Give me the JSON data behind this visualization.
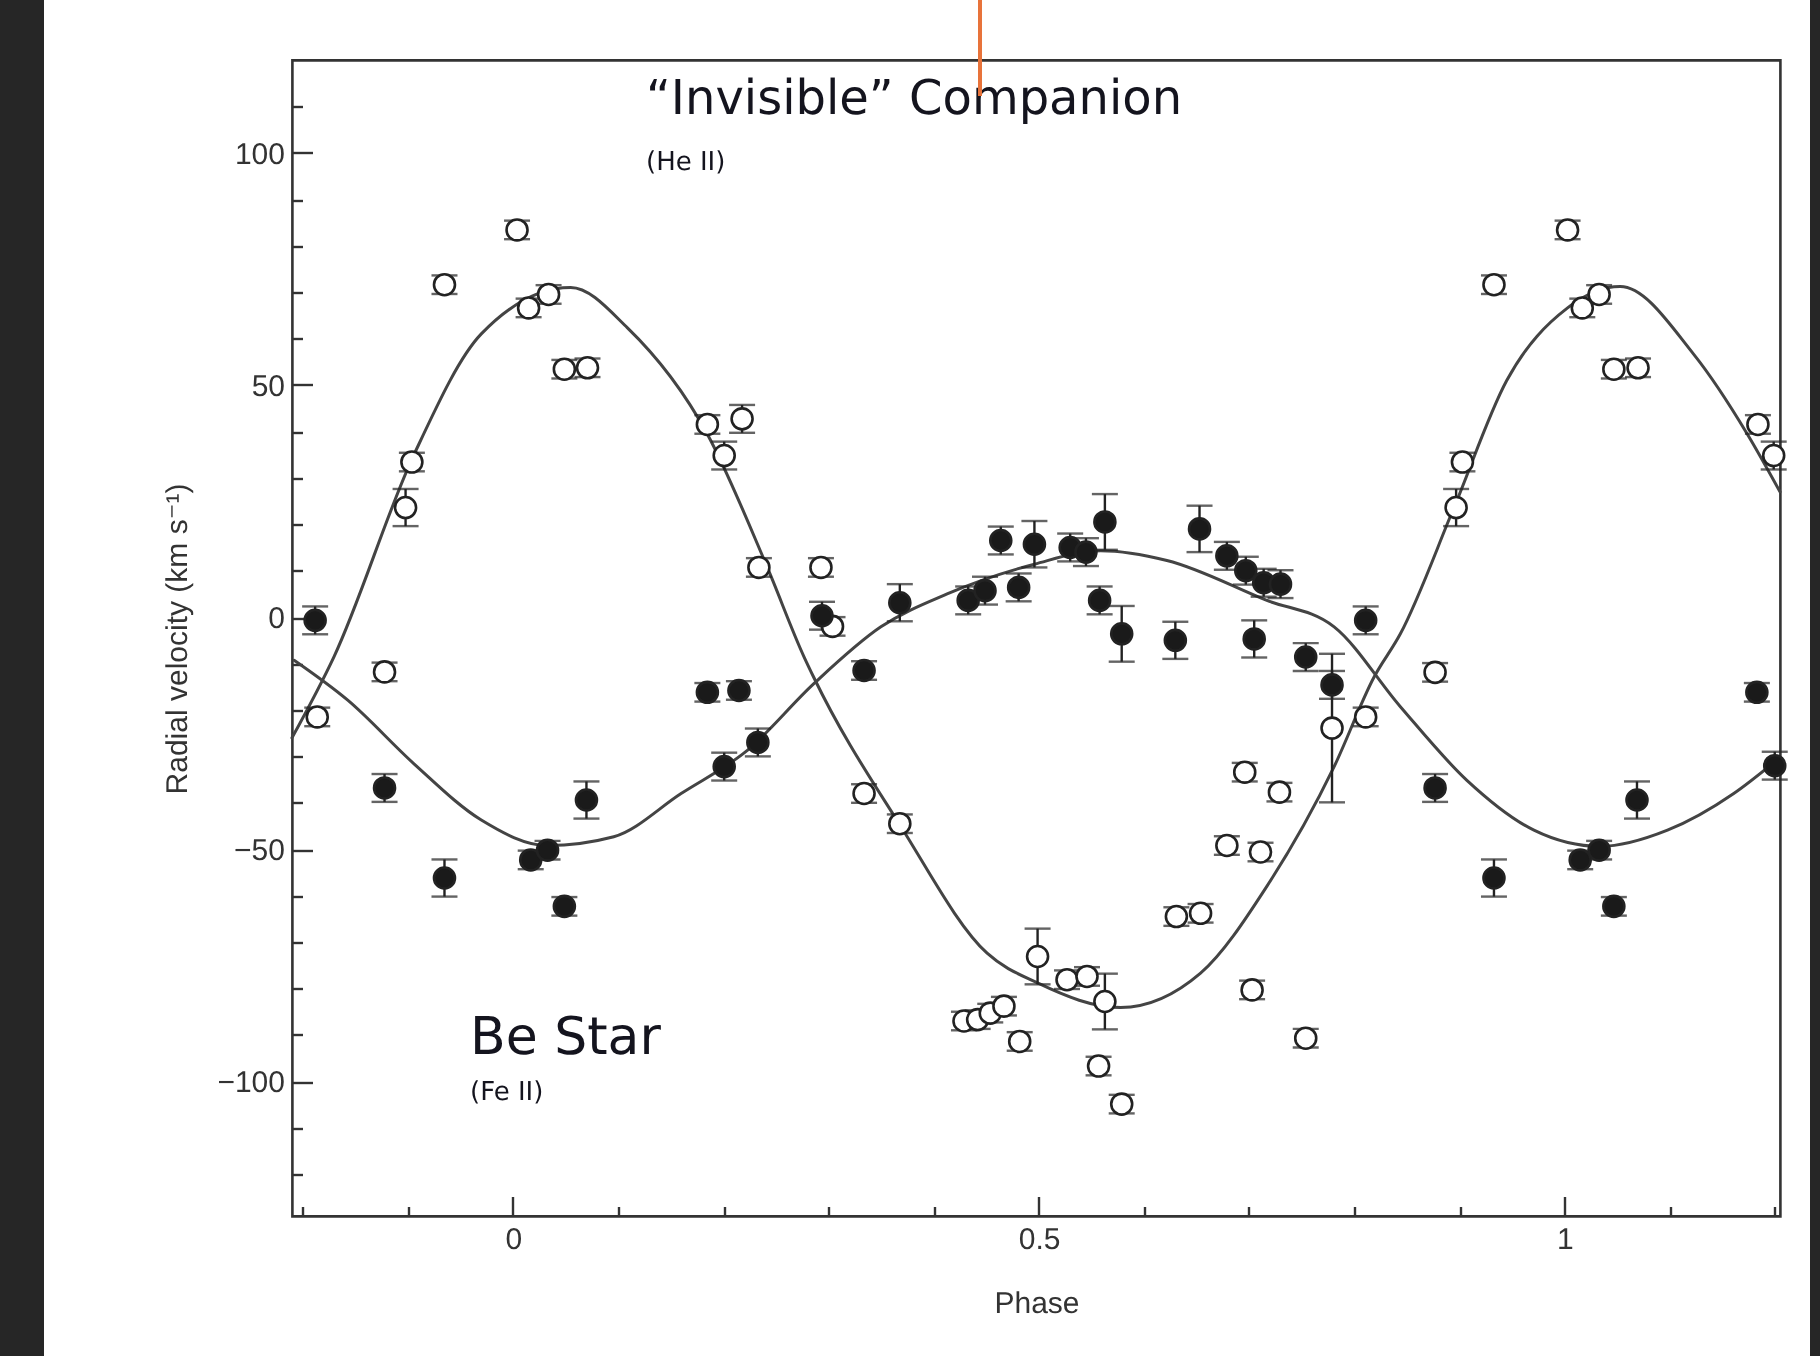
{
  "chart_data": {
    "type": "scatter",
    "xlabel": "Phase",
    "ylabel": "Radial velocity (km s⁻¹)",
    "xlim": [
      -0.21,
      1.205
    ],
    "ylim": [
      -129,
      120
    ],
    "xticks": [
      {
        "value": -0.2,
        "label": null
      },
      {
        "value": -0.1,
        "label": null
      },
      0,
      {
        "value": 0.1,
        "label": null
      },
      {
        "value": 0.2,
        "label": null
      },
      {
        "value": 0.3,
        "label": null
      },
      {
        "value": 0.4,
        "label": null
      },
      0.5,
      {
        "value": 0.6,
        "label": null
      },
      {
        "value": 0.7,
        "label": null
      },
      {
        "value": 0.8,
        "label": null
      },
      {
        "value": 0.9,
        "label": null
      },
      1,
      {
        "value": 1.1,
        "label": null
      },
      {
        "value": 1.2,
        "label": null
      }
    ],
    "yticks": [
      {
        "value": -120,
        "label": null
      },
      {
        "value": -110,
        "label": null
      },
      -100,
      {
        "value": -90,
        "label": null
      },
      {
        "value": -80,
        "label": null
      },
      {
        "value": -70,
        "label": null
      },
      {
        "value": -60,
        "label": null
      },
      -50,
      {
        "value": -40,
        "label": null
      },
      {
        "value": -30,
        "label": null
      },
      {
        "value": -20,
        "label": null
      },
      {
        "value": -10,
        "label": null
      },
      0,
      {
        "value": 10,
        "label": null
      },
      {
        "value": 20,
        "label": null
      },
      {
        "value": 30,
        "label": null
      },
      {
        "value": 40,
        "label": null
      },
      50,
      {
        "value": 60,
        "label": null
      },
      {
        "value": 70,
        "label": null
      },
      {
        "value": 80,
        "label": null
      },
      {
        "value": 90,
        "label": null
      },
      100,
      {
        "value": 110,
        "label": null
      }
    ],
    "marker": "circle",
    "annotations": [
      "“Invisible” Companion",
      "(He II)",
      "Be Star",
      "(Fe II)"
    ],
    "series": [
      {
        "type": "line",
        "color": "#444444",
        "line_style": "solid",
        "marker": "none",
        "x": [
          -0.21,
          -0.17,
          -0.094,
          -0.03,
          0.055,
          0.109,
          0.185,
          0.242,
          0.277,
          0.286,
          0.369,
          0.451,
          0.499,
          0.578,
          0.654,
          0.717,
          0.781,
          0.819,
          0.844,
          0.895,
          0.945,
          1.003,
          1.053,
          1.123,
          1.174,
          1.205
        ],
        "values": [
          -26,
          -8.5,
          35,
          61,
          71,
          62.3,
          39.4,
          10.7,
          -8.6,
          -12.9,
          -45.1,
          -72.4,
          -78.8,
          -84.1,
          -76.7,
          -58,
          -32.2,
          -12.9,
          -3.6,
          23.6,
          50.9,
          66.6,
          71.2,
          56.6,
          39.4,
          27
        ]
      },
      {
        "type": "line",
        "color": "#444444",
        "line_style": "solid",
        "marker": "none",
        "x": [
          -0.208,
          -0.157,
          -0.094,
          -0.03,
          0.033,
          0.096,
          0.16,
          0.223,
          0.286,
          0.35,
          0.413,
          0.496,
          0.559,
          0.622,
          0.717,
          0.781,
          0.844,
          0.907,
          0.971,
          1.034,
          1.098,
          1.161,
          1.202
        ],
        "values": [
          -9.3,
          -17.9,
          -31.6,
          -43.7,
          -49.2,
          -47.3,
          -38,
          -28.7,
          -14.4,
          -2.1,
          5,
          11.4,
          14.3,
          12.2,
          3.6,
          -2.1,
          -19.3,
          -35.1,
          -45.9,
          -49.4,
          -45.9,
          -38,
          -30.8
        ]
      },
      {
        "color": "#ffffff",
        "x": [
          -0.186,
          -0.122,
          -0.102,
          -0.096,
          -0.065,
          0.004,
          0.015,
          0.034,
          0.049,
          0.071,
          0.185,
          0.201,
          0.218,
          0.234,
          0.293,
          0.304,
          0.334,
          0.368,
          0.429,
          0.442,
          0.454,
          0.467,
          0.482,
          0.499,
          0.527,
          0.546,
          0.557,
          0.563,
          0.579,
          0.631,
          0.654,
          0.679,
          0.696,
          0.703,
          0.711,
          0.729,
          0.754,
          0.779,
          0.811,
          0.877,
          0.897,
          0.903,
          0.933,
          1.003,
          1.017,
          1.033,
          1.047,
          1.07,
          1.184,
          1.199
        ],
        "values": [
          -21.5,
          -11.8,
          23.6,
          33.4,
          71.6,
          83.4,
          66.6,
          69.5,
          53.4,
          53.7,
          41.5,
          34.8,
          42.7,
          10.7,
          10.7,
          -2,
          -38,
          -44.5,
          -87,
          -86.7,
          -85.3,
          -83.8,
          -91.4,
          -73.1,
          -78.1,
          -77.4,
          -96.7,
          -82.8,
          -104.9,
          -64.5,
          -63.8,
          -49.2,
          -33.4,
          -80.3,
          -50.6,
          -37.7,
          -90.7,
          -23.9,
          -21.5,
          -11.9,
          23.6,
          33.4,
          71.6,
          83.4,
          66.6,
          69.5,
          53.4,
          53.7,
          41.5,
          34.8
        ],
        "errors": [
          2,
          2,
          4,
          2,
          2,
          2,
          2,
          2,
          2,
          2,
          2,
          3,
          3,
          2,
          2,
          2,
          2,
          2,
          2,
          2,
          2,
          2,
          2,
          6,
          2,
          2,
          2,
          6,
          2,
          2,
          2,
          2,
          2,
          2,
          2,
          2,
          2,
          16,
          2,
          2,
          4,
          2,
          2,
          2,
          2,
          2,
          2,
          2,
          2,
          3
        ]
      },
      {
        "color": "#1a1a1a",
        "x": [
          -0.188,
          -0.122,
          -0.065,
          0.017,
          0.033,
          0.049,
          0.07,
          0.185,
          0.201,
          0.215,
          0.233,
          0.294,
          0.334,
          0.368,
          0.433,
          0.449,
          0.464,
          0.481,
          0.496,
          0.53,
          0.545,
          0.558,
          0.563,
          0.579,
          0.63,
          0.653,
          0.679,
          0.697,
          0.705,
          0.714,
          0.73,
          0.754,
          0.779,
          0.811,
          0.877,
          0.933,
          1.015,
          1.033,
          1.047,
          1.069,
          1.183,
          1.2
        ],
        "values": [
          -0.7,
          -36.8,
          -56.2,
          -52.3,
          -50.2,
          -62.3,
          -39.4,
          -16.2,
          -32.2,
          -15.8,
          -27,
          0.3,
          -11.5,
          3.1,
          3.6,
          5.7,
          16.5,
          6.4,
          15.7,
          15,
          14,
          3.6,
          20.5,
          -3.6,
          -5,
          19,
          13.2,
          10,
          -4.7,
          7.4,
          7.1,
          -8.6,
          -14.6,
          -0.7,
          -36.8,
          -56.2,
          -52.3,
          -50.2,
          -62.3,
          -39.4,
          -16.2,
          -32
        ],
        "errors": [
          3,
          3,
          4,
          2,
          2,
          2,
          4,
          2,
          3,
          2,
          3,
          3,
          2,
          4,
          3,
          3,
          3,
          3,
          5,
          3,
          3,
          3,
          6,
          6,
          4,
          5,
          3,
          3,
          4,
          3,
          3,
          3,
          3,
          3,
          3,
          4,
          2,
          2,
          2,
          4,
          2,
          3
        ]
      }
    ]
  }
}
